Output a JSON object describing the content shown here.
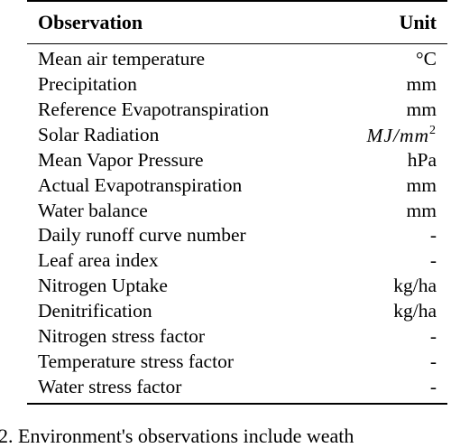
{
  "table": {
    "headers": {
      "observation": "Observation",
      "unit": "Unit"
    },
    "rows": [
      {
        "observation": "Mean air temperature",
        "unit": "°C"
      },
      {
        "observation": "Precipitation",
        "unit": "mm"
      },
      {
        "observation": "Reference Evapotranspiration",
        "unit": "mm"
      },
      {
        "observation": "Solar Radiation",
        "unit": "MJ/mm",
        "unit_sup": "2"
      },
      {
        "observation": "Mean Vapor Pressure",
        "unit": "hPa"
      },
      {
        "observation": "Actual Evapotranspiration",
        "unit": "mm"
      },
      {
        "observation": "Water balance",
        "unit": "mm"
      },
      {
        "observation": "Daily runoff curve number",
        "unit": "-"
      },
      {
        "observation": "Leaf area index",
        "unit": "-"
      },
      {
        "observation": "Nitrogen Uptake",
        "unit": "kg/ha"
      },
      {
        "observation": "Denitrification",
        "unit": "kg/ha"
      },
      {
        "observation": "Nitrogen stress factor",
        "unit": "-"
      },
      {
        "observation": "Temperature stress factor",
        "unit": "-"
      },
      {
        "observation": "Water stress factor",
        "unit": "-"
      }
    ]
  },
  "caption_fragment": "2. Environment's observations include weath"
}
